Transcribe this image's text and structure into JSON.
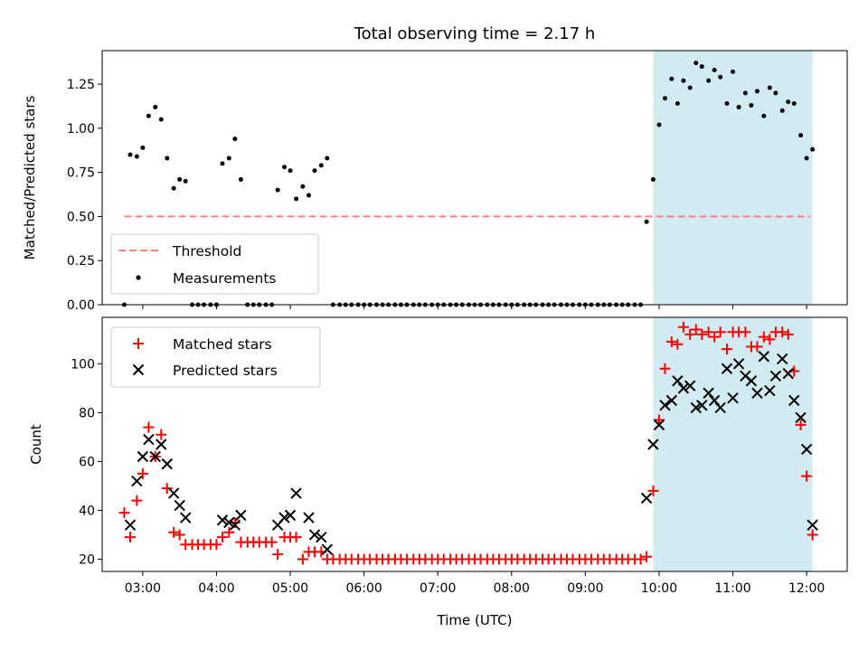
{
  "chart_data": {
    "title": "Total observing time = 2.17 h",
    "x_unit": "hours (UTC)",
    "x_tick_labels": [
      "03:00",
      "04:00",
      "05:00",
      "06:00",
      "07:00",
      "08:00",
      "09:00",
      "10:00",
      "11:00",
      "12:00"
    ],
    "x_tick_values": [
      3,
      4,
      5,
      6,
      7,
      8,
      9,
      10,
      11,
      12
    ],
    "xlim": [
      2.45,
      12.55
    ],
    "xlabel": "Time (UTC)",
    "highlight_span": {
      "x": [
        9.92,
        12.08
      ],
      "color": "#add8e6"
    },
    "panels": [
      {
        "type": "scatter",
        "ylabel": "Matched/Predicted stars",
        "ylim": [
          0,
          1.44
        ],
        "y_tick_values": [
          0,
          0.25,
          0.5,
          0.75,
          1.0,
          1.25
        ],
        "y_tick_labels": [
          "0.00",
          "0.25",
          "0.50",
          "0.75",
          "1.00",
          "1.25"
        ],
        "legend_position": "lower-left",
        "series": [
          {
            "name": "Threshold",
            "kind": "hline",
            "color": "#ff8080",
            "style": "dashed",
            "y": 0.5,
            "x": [
              2.75,
              12.05
            ]
          },
          {
            "name": "Measurements",
            "kind": "points",
            "color": "#000000",
            "x": [
              2.75,
              2.83,
              2.92,
              3.0,
              3.08,
              3.17,
              3.25,
              3.33,
              3.42,
              3.5,
              3.58,
              3.67,
              3.75,
              3.83,
              3.92,
              4.0,
              4.08,
              4.17,
              4.25,
              4.33,
              4.42,
              4.5,
              4.58,
              4.67,
              4.75,
              4.83,
              4.92,
              5.0,
              5.08,
              5.17,
              5.25,
              5.33,
              5.42,
              5.5,
              5.58,
              5.67,
              5.75,
              5.83,
              5.92,
              6.0,
              6.08,
              6.17,
              6.25,
              6.33,
              6.42,
              6.5,
              6.58,
              6.67,
              6.75,
              6.83,
              6.92,
              7.0,
              7.08,
              7.17,
              7.25,
              7.33,
              7.42,
              7.5,
              7.58,
              7.67,
              7.75,
              7.83,
              7.92,
              8.0,
              8.08,
              8.17,
              8.25,
              8.33,
              8.42,
              8.5,
              8.58,
              8.67,
              8.75,
              8.83,
              8.92,
              9.0,
              9.08,
              9.17,
              9.25,
              9.33,
              9.42,
              9.5,
              9.58,
              9.67,
              9.75,
              9.83,
              9.92,
              10.0,
              10.08,
              10.17,
              10.25,
              10.33,
              10.42,
              10.5,
              10.58,
              10.67,
              10.75,
              10.83,
              10.92,
              11.0,
              11.08,
              11.17,
              11.25,
              11.33,
              11.42,
              11.5,
              11.58,
              11.67,
              11.75,
              11.83,
              11.92,
              12.0,
              12.08
            ],
            "y": [
              0,
              0.85,
              0.84,
              0.89,
              1.07,
              1.12,
              1.05,
              0.83,
              0.66,
              0.71,
              0.7,
              0,
              0,
              0,
              0,
              0,
              0.8,
              0.83,
              0.94,
              0.71,
              0,
              0,
              0,
              0,
              0,
              0.65,
              0.78,
              0.76,
              0.6,
              0.67,
              0.62,
              0.76,
              0.79,
              0.83,
              0,
              0,
              0,
              0,
              0,
              0,
              0,
              0,
              0,
              0,
              0,
              0,
              0,
              0,
              0,
              0,
              0,
              0,
              0,
              0,
              0,
              0,
              0,
              0,
              0,
              0,
              0,
              0,
              0,
              0,
              0,
              0,
              0,
              0,
              0,
              0,
              0,
              0,
              0,
              0,
              0,
              0,
              0,
              0,
              0,
              0,
              0,
              0,
              0,
              0,
              0,
              0.47,
              0.71,
              1.02,
              1.17,
              1.28,
              1.14,
              1.27,
              1.23,
              1.37,
              1.35,
              1.27,
              1.33,
              1.29,
              1.14,
              1.32,
              1.12,
              1.2,
              1.13,
              1.21,
              1.07,
              1.23,
              1.2,
              1.1,
              1.15,
              1.14,
              0.96,
              0.83,
              0.88
            ]
          }
        ]
      },
      {
        "type": "scatter",
        "ylabel": "Count",
        "ylim": [
          15,
          119
        ],
        "y_tick_values": [
          20,
          40,
          60,
          80,
          100
        ],
        "y_tick_labels": [
          "20",
          "40",
          "60",
          "80",
          "100"
        ],
        "legend_position": "upper-left",
        "series": [
          {
            "name": "Matched stars",
            "kind": "plus",
            "color": "#ff0000",
            "x": [
              2.75,
              2.83,
              2.92,
              3.0,
              3.08,
              3.17,
              3.25,
              3.33,
              3.42,
              3.5,
              3.58,
              3.67,
              3.75,
              3.83,
              3.92,
              4.0,
              4.08,
              4.17,
              4.25,
              4.33,
              4.42,
              4.5,
              4.58,
              4.67,
              4.75,
              4.83,
              4.92,
              5.0,
              5.08,
              5.17,
              5.25,
              5.33,
              5.42,
              5.5,
              5.58,
              5.67,
              5.75,
              5.83,
              5.92,
              6.0,
              6.08,
              6.17,
              6.25,
              6.33,
              6.42,
              6.5,
              6.58,
              6.67,
              6.75,
              6.83,
              6.92,
              7.0,
              7.08,
              7.17,
              7.25,
              7.33,
              7.42,
              7.5,
              7.58,
              7.67,
              7.75,
              7.83,
              7.92,
              8.0,
              8.08,
              8.17,
              8.25,
              8.33,
              8.42,
              8.5,
              8.58,
              8.67,
              8.75,
              8.83,
              8.92,
              9.0,
              9.08,
              9.17,
              9.25,
              9.33,
              9.42,
              9.5,
              9.58,
              9.67,
              9.75,
              9.83,
              9.92,
              10.0,
              10.08,
              10.17,
              10.25,
              10.33,
              10.42,
              10.5,
              10.58,
              10.67,
              10.75,
              10.83,
              10.92,
              11.0,
              11.08,
              11.17,
              11.25,
              11.33,
              11.42,
              11.5,
              11.58,
              11.67,
              11.75,
              11.83,
              11.92,
              12.0,
              12.08
            ],
            "y": [
              39,
              29,
              44,
              55,
              74,
              62,
              71,
              49,
              31,
              30,
              26,
              26,
              26,
              26,
              26,
              26,
              29,
              31,
              35,
              27,
              27,
              27,
              27,
              27,
              27,
              22,
              29,
              29,
              29,
              20,
              23,
              23,
              23,
              20,
              20,
              20,
              20,
              20,
              20,
              20,
              20,
              20,
              20,
              20,
              20,
              20,
              20,
              20,
              20,
              20,
              20,
              20,
              20,
              20,
              20,
              20,
              20,
              20,
              20,
              20,
              20,
              20,
              20,
              20,
              20,
              20,
              20,
              20,
              20,
              20,
              20,
              20,
              20,
              20,
              20,
              20,
              20,
              20,
              20,
              20,
              20,
              20,
              20,
              20,
              20,
              21,
              48,
              77,
              98,
              109,
              108,
              115,
              112,
              114,
              112,
              113,
              111,
              113,
              106,
              113,
              113,
              113,
              107,
              107,
              111,
              110,
              113,
              113,
              112,
              97,
              75,
              54,
              30
            ]
          },
          {
            "name": "Predicted stars",
            "kind": "cross",
            "color": "#000000",
            "x": [
              2.83,
              2.92,
              3.0,
              3.08,
              3.17,
              3.25,
              3.33,
              3.42,
              3.5,
              3.58,
              4.08,
              4.17,
              4.25,
              4.33,
              4.83,
              4.92,
              5.0,
              5.08,
              5.25,
              5.33,
              5.42,
              5.5,
              9.83,
              9.92,
              10.0,
              10.08,
              10.17,
              10.25,
              10.33,
              10.42,
              10.5,
              10.58,
              10.67,
              10.75,
              10.83,
              10.92,
              11.0,
              11.08,
              11.17,
              11.25,
              11.33,
              11.42,
              11.5,
              11.58,
              11.67,
              11.75,
              11.83,
              11.92,
              12.0,
              12.08
            ],
            "y": [
              34,
              52,
              62,
              69,
              62,
              67,
              59,
              47,
              42,
              37,
              36,
              35,
              34,
              38,
              34,
              37,
              38,
              47,
              37,
              30,
              29,
              24,
              45,
              67,
              75,
              83,
              85,
              93,
              90,
              91,
              82,
              83,
              88,
              85,
              82,
              98,
              86,
              100,
              95,
              93,
              88,
              103,
              89,
              95,
              102,
              96,
              85,
              78,
              65,
              34
            ]
          }
        ]
      }
    ]
  }
}
